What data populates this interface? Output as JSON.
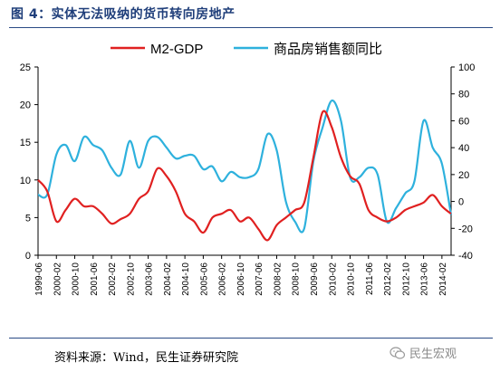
{
  "caption": "图 4：实体无法吸纳的货币转向房地产",
  "source": "资料来源：Wind，民生证券研究院",
  "watermark": {
    "text": "民生宏观",
    "icon": "wechat-icon"
  },
  "chart_data": {
    "type": "line",
    "title": "",
    "legend_position": "top",
    "grid": false,
    "x_ticks": [
      "1999-06",
      "2000-02",
      "2000-10",
      "2001-06",
      "2002-02",
      "2002-10",
      "2003-06",
      "2004-02",
      "2004-10",
      "2005-06",
      "2006-02",
      "2006-10",
      "2007-06",
      "2008-02",
      "2008-10",
      "2009-06",
      "2010-02",
      "2010-10",
      "2011-06",
      "2012-02",
      "2012-10",
      "2013-06",
      "2014-02"
    ],
    "y_left": {
      "lim": [
        0,
        25
      ],
      "ticks": [
        0,
        5,
        10,
        15,
        20,
        25
      ]
    },
    "y_right": {
      "lim": [
        -40,
        100
      ],
      "ticks": [
        -40,
        -20,
        0,
        20,
        40,
        60,
        80,
        100
      ]
    },
    "series": [
      {
        "name": "M2-GDP",
        "axis": "left",
        "color": "#e02020",
        "x": [
          "1999-06",
          "1999-10",
          "2000-02",
          "2000-06",
          "2000-10",
          "2001-02",
          "2001-06",
          "2001-10",
          "2002-02",
          "2002-06",
          "2002-10",
          "2003-02",
          "2003-06",
          "2003-10",
          "2004-02",
          "2004-06",
          "2004-10",
          "2005-02",
          "2005-06",
          "2005-10",
          "2006-02",
          "2006-06",
          "2006-10",
          "2007-02",
          "2007-06",
          "2007-10",
          "2008-02",
          "2008-06",
          "2008-10",
          "2009-02",
          "2009-06",
          "2009-10",
          "2010-02",
          "2010-06",
          "2010-10",
          "2011-02",
          "2011-06",
          "2011-10",
          "2012-02",
          "2012-06",
          "2012-10",
          "2013-02",
          "2013-06",
          "2013-10",
          "2014-02",
          "2014-06"
        ],
        "values": [
          10,
          8.5,
          4.5,
          6,
          7.5,
          6.5,
          6.5,
          5.5,
          4.2,
          4.8,
          5.5,
          7.5,
          8.5,
          11.5,
          10.5,
          8.5,
          5.5,
          4.5,
          3,
          5,
          5.5,
          6,
          4.5,
          5,
          3.5,
          2,
          4,
          5,
          6,
          7,
          13,
          19,
          17,
          13,
          10.5,
          9.5,
          6,
          5,
          4.5,
          5,
          6,
          6.5,
          7,
          8,
          6.5,
          5.5
        ]
      },
      {
        "name": "商品房销售额同比",
        "axis": "right",
        "color": "#2eb1dd",
        "x": [
          "1999-06",
          "1999-10",
          "2000-02",
          "2000-06",
          "2000-10",
          "2001-02",
          "2001-06",
          "2001-10",
          "2002-02",
          "2002-06",
          "2002-10",
          "2003-02",
          "2003-06",
          "2003-10",
          "2004-02",
          "2004-06",
          "2004-10",
          "2005-02",
          "2005-06",
          "2005-10",
          "2006-02",
          "2006-06",
          "2006-10",
          "2007-02",
          "2007-06",
          "2007-10",
          "2008-02",
          "2008-06",
          "2008-10",
          "2009-02",
          "2009-06",
          "2009-10",
          "2010-02",
          "2010-06",
          "2010-10",
          "2011-02",
          "2011-06",
          "2011-10",
          "2012-02",
          "2012-06",
          "2012-10",
          "2013-02",
          "2013-06",
          "2013-10",
          "2014-02",
          "2014-06"
        ],
        "values": [
          5,
          5,
          35,
          42,
          30,
          48,
          42,
          38,
          25,
          20,
          45,
          25,
          45,
          48,
          40,
          32,
          34,
          34,
          24,
          26,
          15,
          22,
          18,
          18,
          24,
          50,
          38,
          0,
          -15,
          -20,
          30,
          55,
          75,
          60,
          18,
          18,
          25,
          20,
          -15,
          -5,
          6,
          15,
          60,
          40,
          28,
          -10
        ]
      }
    ]
  }
}
